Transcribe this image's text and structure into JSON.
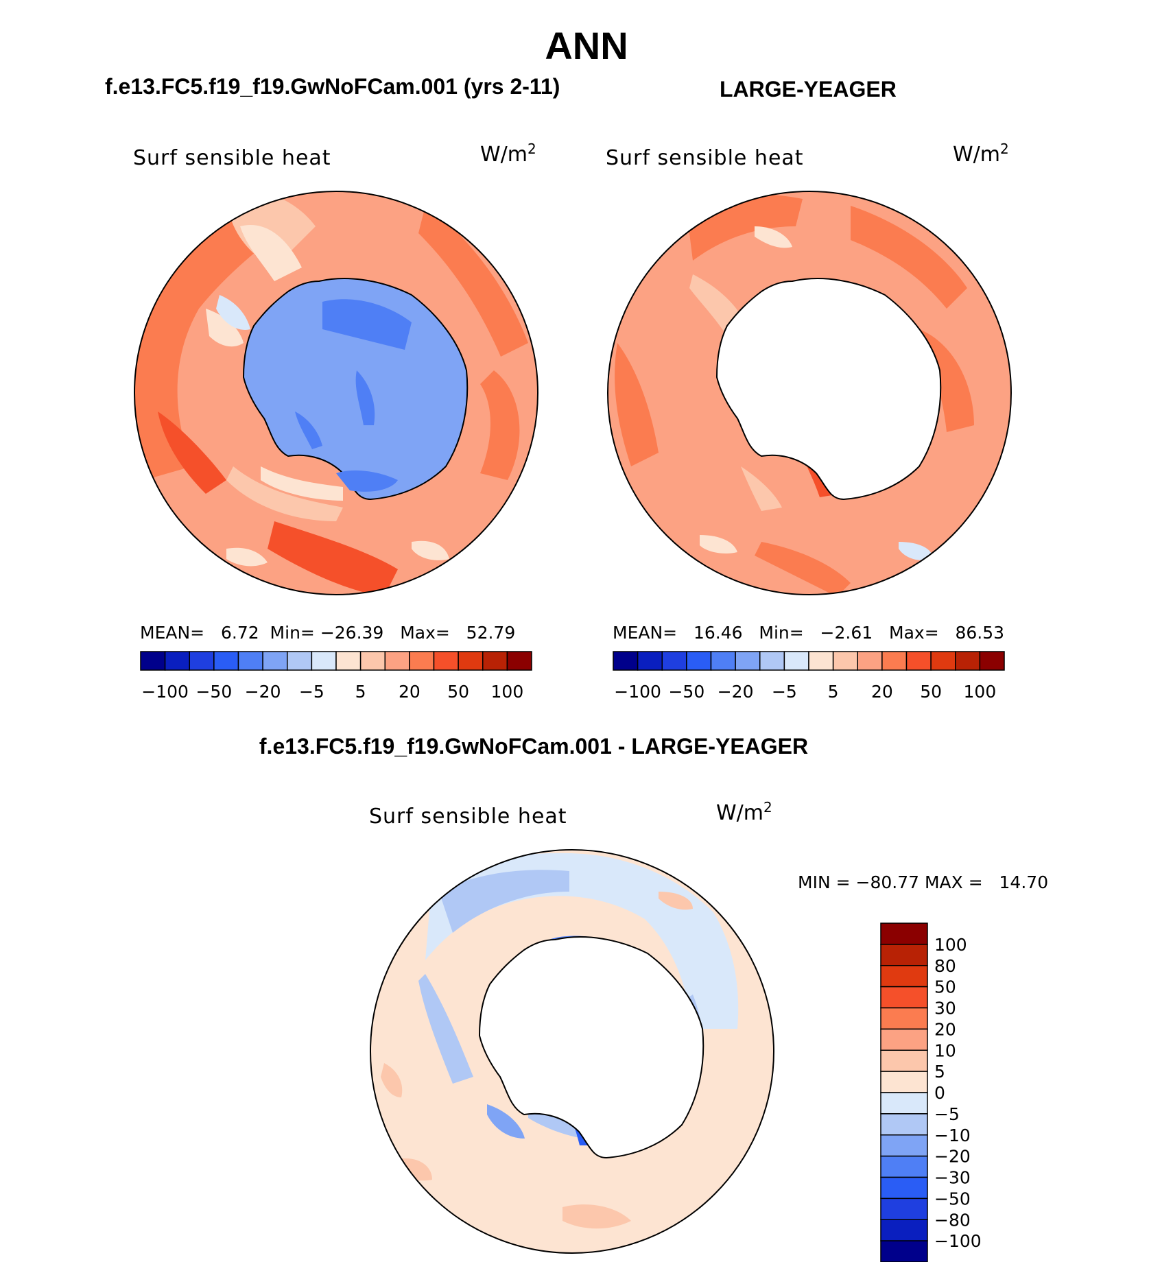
{
  "title": "ANN",
  "diff_title": "f.e13.FC5.f19_f19.GwNoFCam.001 - LARGE-YEAGER",
  "panels": [
    {
      "title": "f.e13.FC5.f19_f19.GwNoFCam.001 (yrs 2-11)",
      "variable": "Surf sensible heat",
      "units_base": "W/m",
      "units_exp": "2",
      "mean_label": "MEAN=",
      "mean": "6.72",
      "min_label": "Min=",
      "min": "−26.39",
      "max_label": "Max=",
      "max": "52.79"
    },
    {
      "title": "LARGE-YEAGER",
      "variable": "Surf sensible heat",
      "units_base": "W/m",
      "units_exp": "2",
      "mean_label": "MEAN=",
      "mean": "16.46",
      "min_label": "Min=",
      "min": "−2.61",
      "max_label": "Max=",
      "max": "86.53"
    }
  ],
  "diff_panel": {
    "variable": "Surf sensible heat",
    "units_base": "W/m",
    "units_exp": "2",
    "min_label": "MIN =",
    "min": "−80.77",
    "max_label": "MAX =",
    "max": "14.70"
  },
  "colorbar_top": {
    "colors": [
      "#00008b",
      "#0a1fbf",
      "#1f3fe0",
      "#2a5df5",
      "#4f7ff5",
      "#7fa4f5",
      "#b0c8f5",
      "#d9e8fa",
      "#fde4d2",
      "#fcc7ac",
      "#fca283",
      "#fb7c50",
      "#f5502a",
      "#e03a10",
      "#b82205",
      "#8b0000"
    ],
    "tick_labels": [
      "−100",
      "−50",
      "−20",
      "−5",
      "5",
      "20",
      "50",
      "100"
    ]
  },
  "colorbar_diff": {
    "colors": [
      "#8b0000",
      "#b82205",
      "#e03a10",
      "#f5502a",
      "#fb7c50",
      "#fca283",
      "#fcc7ac",
      "#fde4d2",
      "#d9e8fa",
      "#b0c8f5",
      "#7fa4f5",
      "#4f7ff5",
      "#2a5df5",
      "#1f3fe0",
      "#0a1fbf",
      "#00008b"
    ],
    "tick_labels": [
      "100",
      "80",
      "50",
      "30",
      "20",
      "10",
      "5",
      "0",
      "−5",
      "−10",
      "−20",
      "−30",
      "−50",
      "−80",
      "−100"
    ]
  }
}
